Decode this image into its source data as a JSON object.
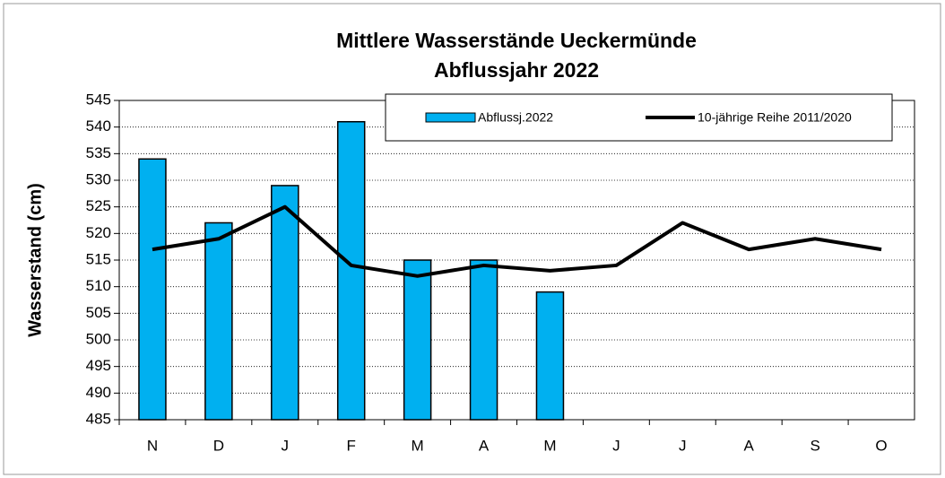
{
  "chart_data": {
    "type": "bar_line",
    "title": [
      "Mittlere Wasserstände Ueckermünde",
      "Abflussjahr 2022"
    ],
    "y_label": "Wasserstand  (cm)",
    "categories": [
      "N",
      "D",
      "J",
      "F",
      "M",
      "A",
      "M",
      "J",
      "J",
      "A",
      "S",
      "O"
    ],
    "series": [
      {
        "name": "Abflussj.2022",
        "type": "bar",
        "color": "#00b0f0",
        "values": [
          534,
          522,
          529,
          541,
          515,
          515,
          509,
          null,
          null,
          null,
          null,
          null
        ]
      },
      {
        "name": "10-jährige Reihe  2011/2020",
        "type": "line",
        "color": "#000000",
        "values": [
          517,
          519,
          525,
          514,
          512,
          514,
          513,
          514,
          522,
          517,
          519,
          517
        ]
      }
    ],
    "ylim": [
      485,
      545
    ],
    "yticks": [
      485,
      490,
      495,
      500,
      505,
      510,
      515,
      520,
      525,
      530,
      535,
      540,
      545
    ],
    "grid": true,
    "legend": "top-right"
  }
}
